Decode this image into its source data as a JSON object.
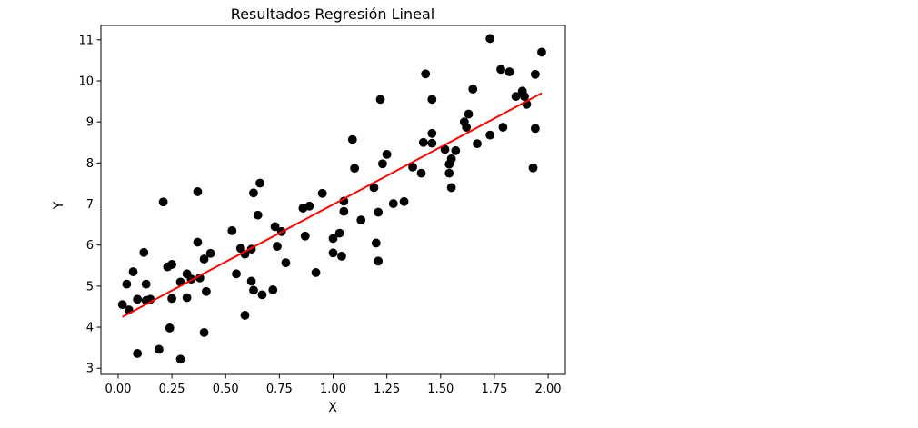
{
  "chart_data": {
    "type": "scatter",
    "title": "Resultados Regresión Lineal",
    "xlabel": "X",
    "ylabel": "Y",
    "xlim": [
      -0.08,
      2.08
    ],
    "ylim": [
      2.85,
      11.35
    ],
    "xticks": [
      0.0,
      0.25,
      0.5,
      0.75,
      1.0,
      1.25,
      1.5,
      1.75,
      2.0
    ],
    "xtick_labels": [
      "0.00",
      "0.25",
      "0.50",
      "0.75",
      "1.00",
      "1.25",
      "1.50",
      "1.75",
      "2.00"
    ],
    "yticks": [
      3,
      4,
      5,
      6,
      7,
      8,
      9,
      10,
      11
    ],
    "ytick_labels": [
      "3",
      "4",
      "5",
      "6",
      "7",
      "8",
      "9",
      "10",
      "11"
    ],
    "grid": false,
    "series": [
      {
        "kind": "scatter",
        "color": "#000000",
        "points": [
          [
            0.02,
            4.55
          ],
          [
            0.05,
            4.42
          ],
          [
            0.04,
            5.05
          ],
          [
            0.07,
            5.35
          ],
          [
            0.09,
            4.68
          ],
          [
            0.09,
            3.36
          ],
          [
            0.12,
            5.82
          ],
          [
            0.13,
            5.05
          ],
          [
            0.13,
            4.65
          ],
          [
            0.15,
            4.68
          ],
          [
            0.19,
            3.46
          ],
          [
            0.21,
            7.05
          ],
          [
            0.23,
            5.47
          ],
          [
            0.24,
            3.98
          ],
          [
            0.25,
            5.53
          ],
          [
            0.25,
            4.7
          ],
          [
            0.29,
            5.1
          ],
          [
            0.29,
            3.22
          ],
          [
            0.32,
            5.3
          ],
          [
            0.32,
            4.72
          ],
          [
            0.34,
            5.17
          ],
          [
            0.37,
            6.07
          ],
          [
            0.37,
            7.3
          ],
          [
            0.38,
            5.2
          ],
          [
            0.4,
            5.66
          ],
          [
            0.4,
            3.87
          ],
          [
            0.41,
            4.87
          ],
          [
            0.43,
            5.8
          ],
          [
            0.53,
            6.35
          ],
          [
            0.55,
            5.3
          ],
          [
            0.57,
            5.92
          ],
          [
            0.59,
            5.78
          ],
          [
            0.59,
            4.29
          ],
          [
            0.62,
            5.9
          ],
          [
            0.62,
            5.12
          ],
          [
            0.63,
            4.9
          ],
          [
            0.63,
            7.27
          ],
          [
            0.65,
            6.73
          ],
          [
            0.66,
            7.51
          ],
          [
            0.67,
            4.79
          ],
          [
            0.72,
            4.91
          ],
          [
            0.73,
            6.45
          ],
          [
            0.74,
            5.97
          ],
          [
            0.76,
            6.33
          ],
          [
            0.78,
            5.57
          ],
          [
            0.86,
            6.9
          ],
          [
            0.87,
            6.22
          ],
          [
            0.89,
            6.95
          ],
          [
            0.92,
            5.33
          ],
          [
            0.95,
            7.26
          ],
          [
            1.0,
            6.16
          ],
          [
            1.0,
            5.81
          ],
          [
            1.03,
            6.29
          ],
          [
            1.04,
            5.73
          ],
          [
            1.05,
            6.82
          ],
          [
            1.05,
            7.07
          ],
          [
            1.09,
            8.57
          ],
          [
            1.1,
            7.87
          ],
          [
            1.13,
            6.61
          ],
          [
            1.19,
            7.4
          ],
          [
            1.2,
            6.05
          ],
          [
            1.21,
            6.8
          ],
          [
            1.21,
            5.61
          ],
          [
            1.22,
            9.55
          ],
          [
            1.23,
            7.98
          ],
          [
            1.25,
            8.21
          ],
          [
            1.28,
            7.01
          ],
          [
            1.33,
            7.06
          ],
          [
            1.37,
            7.9
          ],
          [
            1.41,
            7.75
          ],
          [
            1.42,
            8.5
          ],
          [
            1.43,
            10.17
          ],
          [
            1.46,
            9.55
          ],
          [
            1.46,
            8.72
          ],
          [
            1.46,
            8.48
          ],
          [
            1.52,
            8.33
          ],
          [
            1.54,
            7.97
          ],
          [
            1.54,
            7.75
          ],
          [
            1.55,
            8.1
          ],
          [
            1.55,
            7.4
          ],
          [
            1.57,
            8.3
          ],
          [
            1.61,
            9.0
          ],
          [
            1.62,
            8.87
          ],
          [
            1.63,
            9.19
          ],
          [
            1.65,
            9.8
          ],
          [
            1.67,
            8.47
          ],
          [
            1.73,
            11.03
          ],
          [
            1.73,
            8.68
          ],
          [
            1.78,
            10.28
          ],
          [
            1.79,
            8.87
          ],
          [
            1.82,
            10.22
          ],
          [
            1.85,
            9.62
          ],
          [
            1.88,
            9.75
          ],
          [
            1.89,
            9.62
          ],
          [
            1.9,
            9.43
          ],
          [
            1.93,
            7.88
          ],
          [
            1.94,
            10.16
          ],
          [
            1.94,
            8.84
          ],
          [
            1.97,
            10.7
          ]
        ]
      },
      {
        "kind": "line",
        "color": "#ff0000",
        "x": [
          0.02,
          1.97
        ],
        "y": [
          4.25,
          9.7
        ]
      }
    ]
  }
}
